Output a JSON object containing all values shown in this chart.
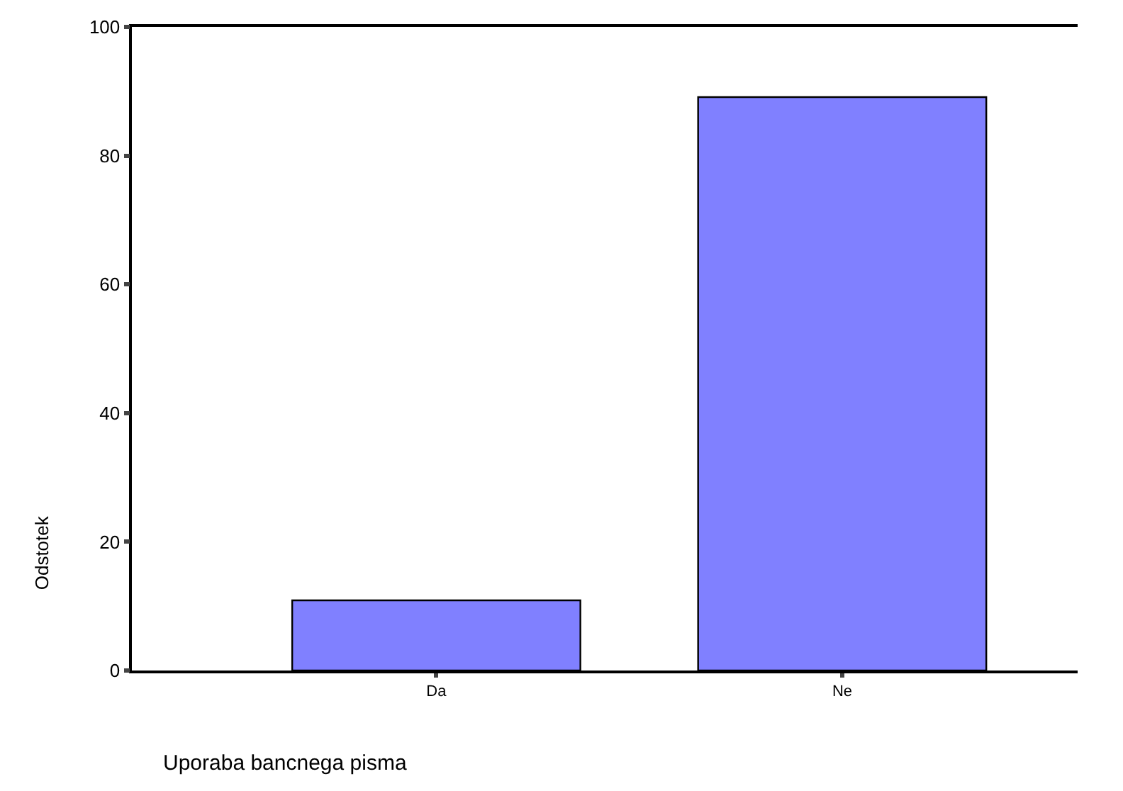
{
  "chart_data": {
    "type": "bar",
    "categories": [
      "Da",
      "Ne"
    ],
    "values": [
      10.9,
      89.1
    ],
    "color": "#8080ff",
    "xlabel": "Uporaba bancnega pisma",
    "ylabel": "Odstotek",
    "ylim": [
      0,
      100
    ],
    "yticks": [
      0,
      20,
      40,
      60,
      80,
      100
    ],
    "legend": false
  }
}
